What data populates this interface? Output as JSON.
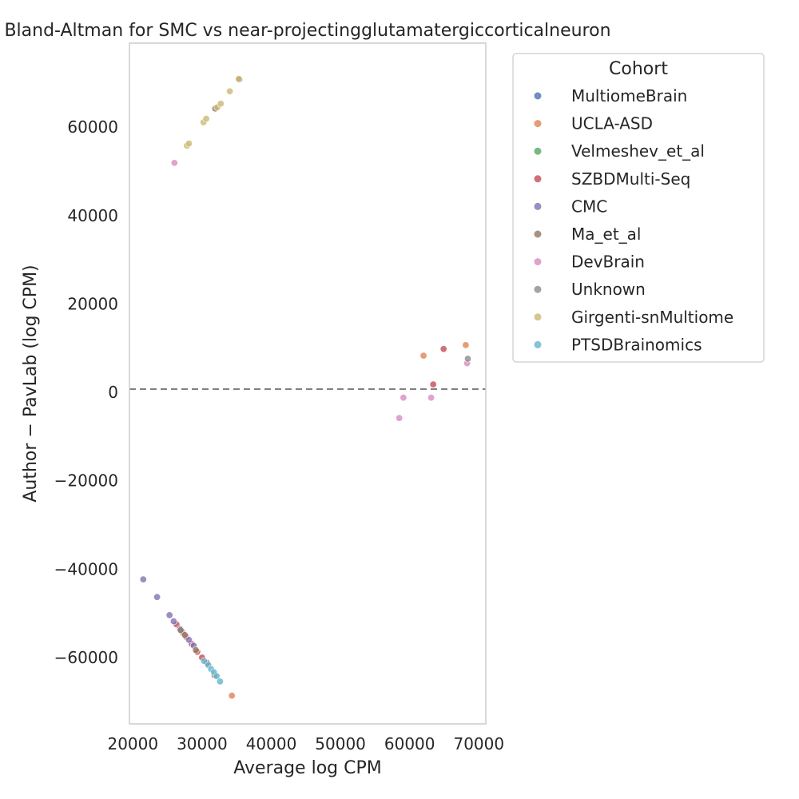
{
  "chart_data": {
    "type": "scatter",
    "title": "Bland-Altman for SMC vs near-projectingglutamatergiccorticalneuron",
    "xlabel": "Average log CPM",
    "ylabel": "Author − PavLab (log CPM)",
    "xlim": [
      19500,
      71000
    ],
    "ylim": [
      -75000,
      79000
    ],
    "xticks": [
      20000,
      30000,
      40000,
      50000,
      60000,
      70000
    ],
    "yticks": [
      -60000,
      -40000,
      -20000,
      0,
      20000,
      40000,
      60000
    ],
    "xtick_labels": [
      "20000",
      "30000",
      "40000",
      "50000",
      "60000",
      "70000"
    ],
    "ytick_labels": [
      "−60000",
      "−40000",
      "−20000",
      "0",
      "20000",
      "40000",
      "60000"
    ],
    "reference_line": {
      "y": 0,
      "style": "dashed",
      "color": "#808080"
    },
    "grid": false,
    "legend": {
      "title": "Cohort",
      "placement": "outside-top-right"
    },
    "series": [
      {
        "name": "MultiomeBrain",
        "color": "#4c72b0",
        "points": []
      },
      {
        "name": "UCLA-ASD",
        "color": "#dd8452",
        "points": [
          [
            34300,
            -68600
          ],
          [
            62000,
            8300
          ],
          [
            68100,
            10700
          ]
        ]
      },
      {
        "name": "Velmeshev_et_al",
        "color": "#55a868",
        "points": []
      },
      {
        "name": "SZBDMulti-Seq",
        "color": "#c44e52",
        "points": [
          [
            26300,
            -52500
          ],
          [
            27700,
            -55300
          ],
          [
            28500,
            -56900
          ],
          [
            29300,
            -58700
          ],
          [
            30000,
            -60000
          ],
          [
            30700,
            -61200
          ],
          [
            63400,
            1800
          ],
          [
            64900,
            9800
          ]
        ]
      },
      {
        "name": "CMC",
        "color": "#8172b3",
        "points": [
          [
            21500,
            -42300
          ],
          [
            23500,
            -46300
          ],
          [
            25300,
            -50400
          ],
          [
            25900,
            -51800
          ],
          [
            26800,
            -53500
          ],
          [
            27200,
            -54300
          ],
          [
            28100,
            -56000
          ],
          [
            28800,
            -57300
          ]
        ]
      },
      {
        "name": "Ma_et_al",
        "color": "#937860",
        "points": [
          [
            35400,
            70800
          ],
          [
            31900,
            64200
          ],
          [
            26900,
            -53800
          ],
          [
            27500,
            -54900
          ],
          [
            29100,
            -58300
          ],
          [
            31800,
            -64000
          ]
        ]
      },
      {
        "name": "DevBrain",
        "color": "#da8bc3",
        "points": [
          [
            26000,
            51900
          ],
          [
            58500,
            -5800
          ],
          [
            59100,
            -1200
          ],
          [
            63100,
            -1200
          ],
          [
            68300,
            6600
          ]
        ]
      },
      {
        "name": "Unknown",
        "color": "#8c8c8c",
        "points": [
          [
            68400,
            7600
          ]
        ]
      },
      {
        "name": "Girgenti-snMultiome",
        "color": "#ccb974",
        "points": [
          [
            27800,
            55800
          ],
          [
            28100,
            56300
          ],
          [
            30200,
            61100
          ],
          [
            30600,
            61900
          ],
          [
            32200,
            64500
          ],
          [
            32700,
            65300
          ],
          [
            34000,
            68100
          ],
          [
            35300,
            70900
          ]
        ]
      },
      {
        "name": "PTSDBrainomics",
        "color": "#64b5cd",
        "points": [
          [
            30300,
            -60800
          ],
          [
            30900,
            -61700
          ],
          [
            31300,
            -62600
          ],
          [
            31700,
            -63300
          ],
          [
            32100,
            -64200
          ],
          [
            32600,
            -65400
          ]
        ]
      }
    ]
  }
}
